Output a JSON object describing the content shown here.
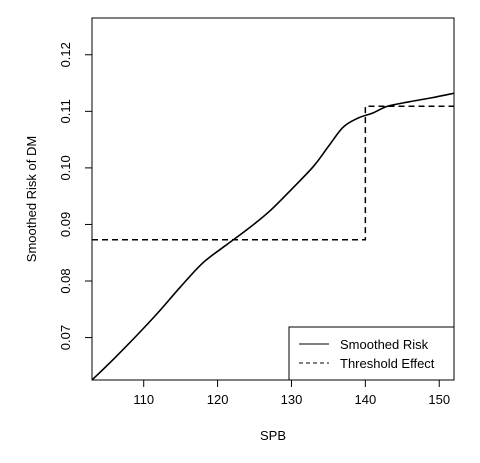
{
  "chart_data": {
    "type": "line",
    "title": "",
    "xlabel": "SPB",
    "ylabel": "Smoothed Risk of DM",
    "xlim": [
      103,
      152
    ],
    "ylim": [
      0.0625,
      0.1265
    ],
    "x_ticks": [
      110,
      120,
      130,
      140,
      150
    ],
    "y_ticks": [
      0.07,
      0.08,
      0.09,
      0.1,
      0.11,
      0.12
    ],
    "y_tick_labels": [
      "0.07",
      "0.08",
      "0.09",
      "0.10",
      "0.11",
      "0.12"
    ],
    "grid": false,
    "legend_position": "bottom-right",
    "series": [
      {
        "name": "Smoothed Risk",
        "style": "solid",
        "x": [
          103,
          106,
          109,
          112,
          115,
          118,
          121,
          124,
          127,
          130,
          133,
          135,
          137,
          139,
          141,
          143,
          146,
          149,
          152
        ],
        "y": [
          0.0625,
          0.0663,
          0.0703,
          0.0745,
          0.079,
          0.0832,
          0.0862,
          0.0891,
          0.0923,
          0.0962,
          0.1003,
          0.1038,
          0.1072,
          0.1088,
          0.1097,
          0.1109,
          0.1117,
          0.1124,
          0.1132
        ]
      },
      {
        "name": "Threshold Effect",
        "style": "dashed",
        "x": [
          103,
          140,
          140,
          152
        ],
        "y": [
          0.0873,
          0.0873,
          0.1109,
          0.1109
        ]
      }
    ]
  }
}
